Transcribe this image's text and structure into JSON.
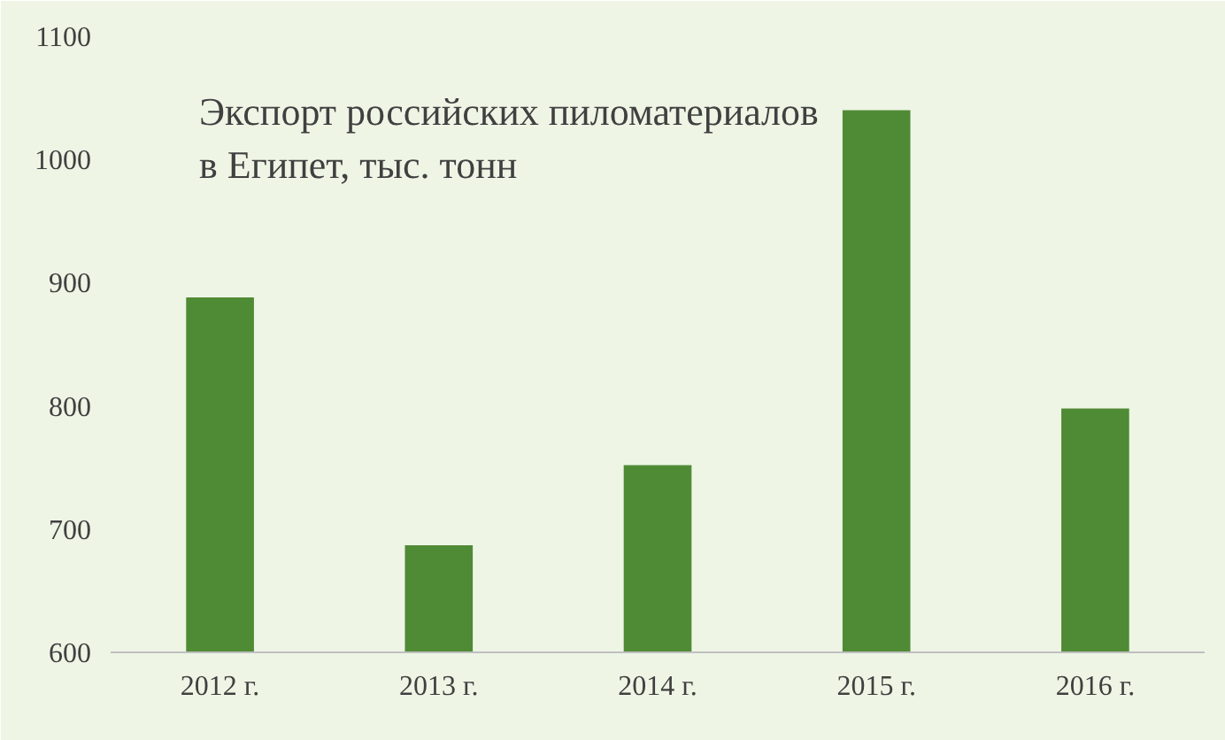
{
  "chart_data": {
    "type": "bar",
    "title": "Экспорт российских пиломатериалов в Египет, тыс. тонн",
    "categories": [
      "2012 г.",
      "2013 г.",
      "2014 г.",
      "2015 г.",
      "2016 г."
    ],
    "values": [
      888,
      687,
      752,
      1040,
      798
    ],
    "color": "#4f8a35",
    "ylim": [
      600,
      1100
    ],
    "yticks": [
      600,
      700,
      800,
      900,
      1000,
      1100
    ],
    "grid": false
  }
}
